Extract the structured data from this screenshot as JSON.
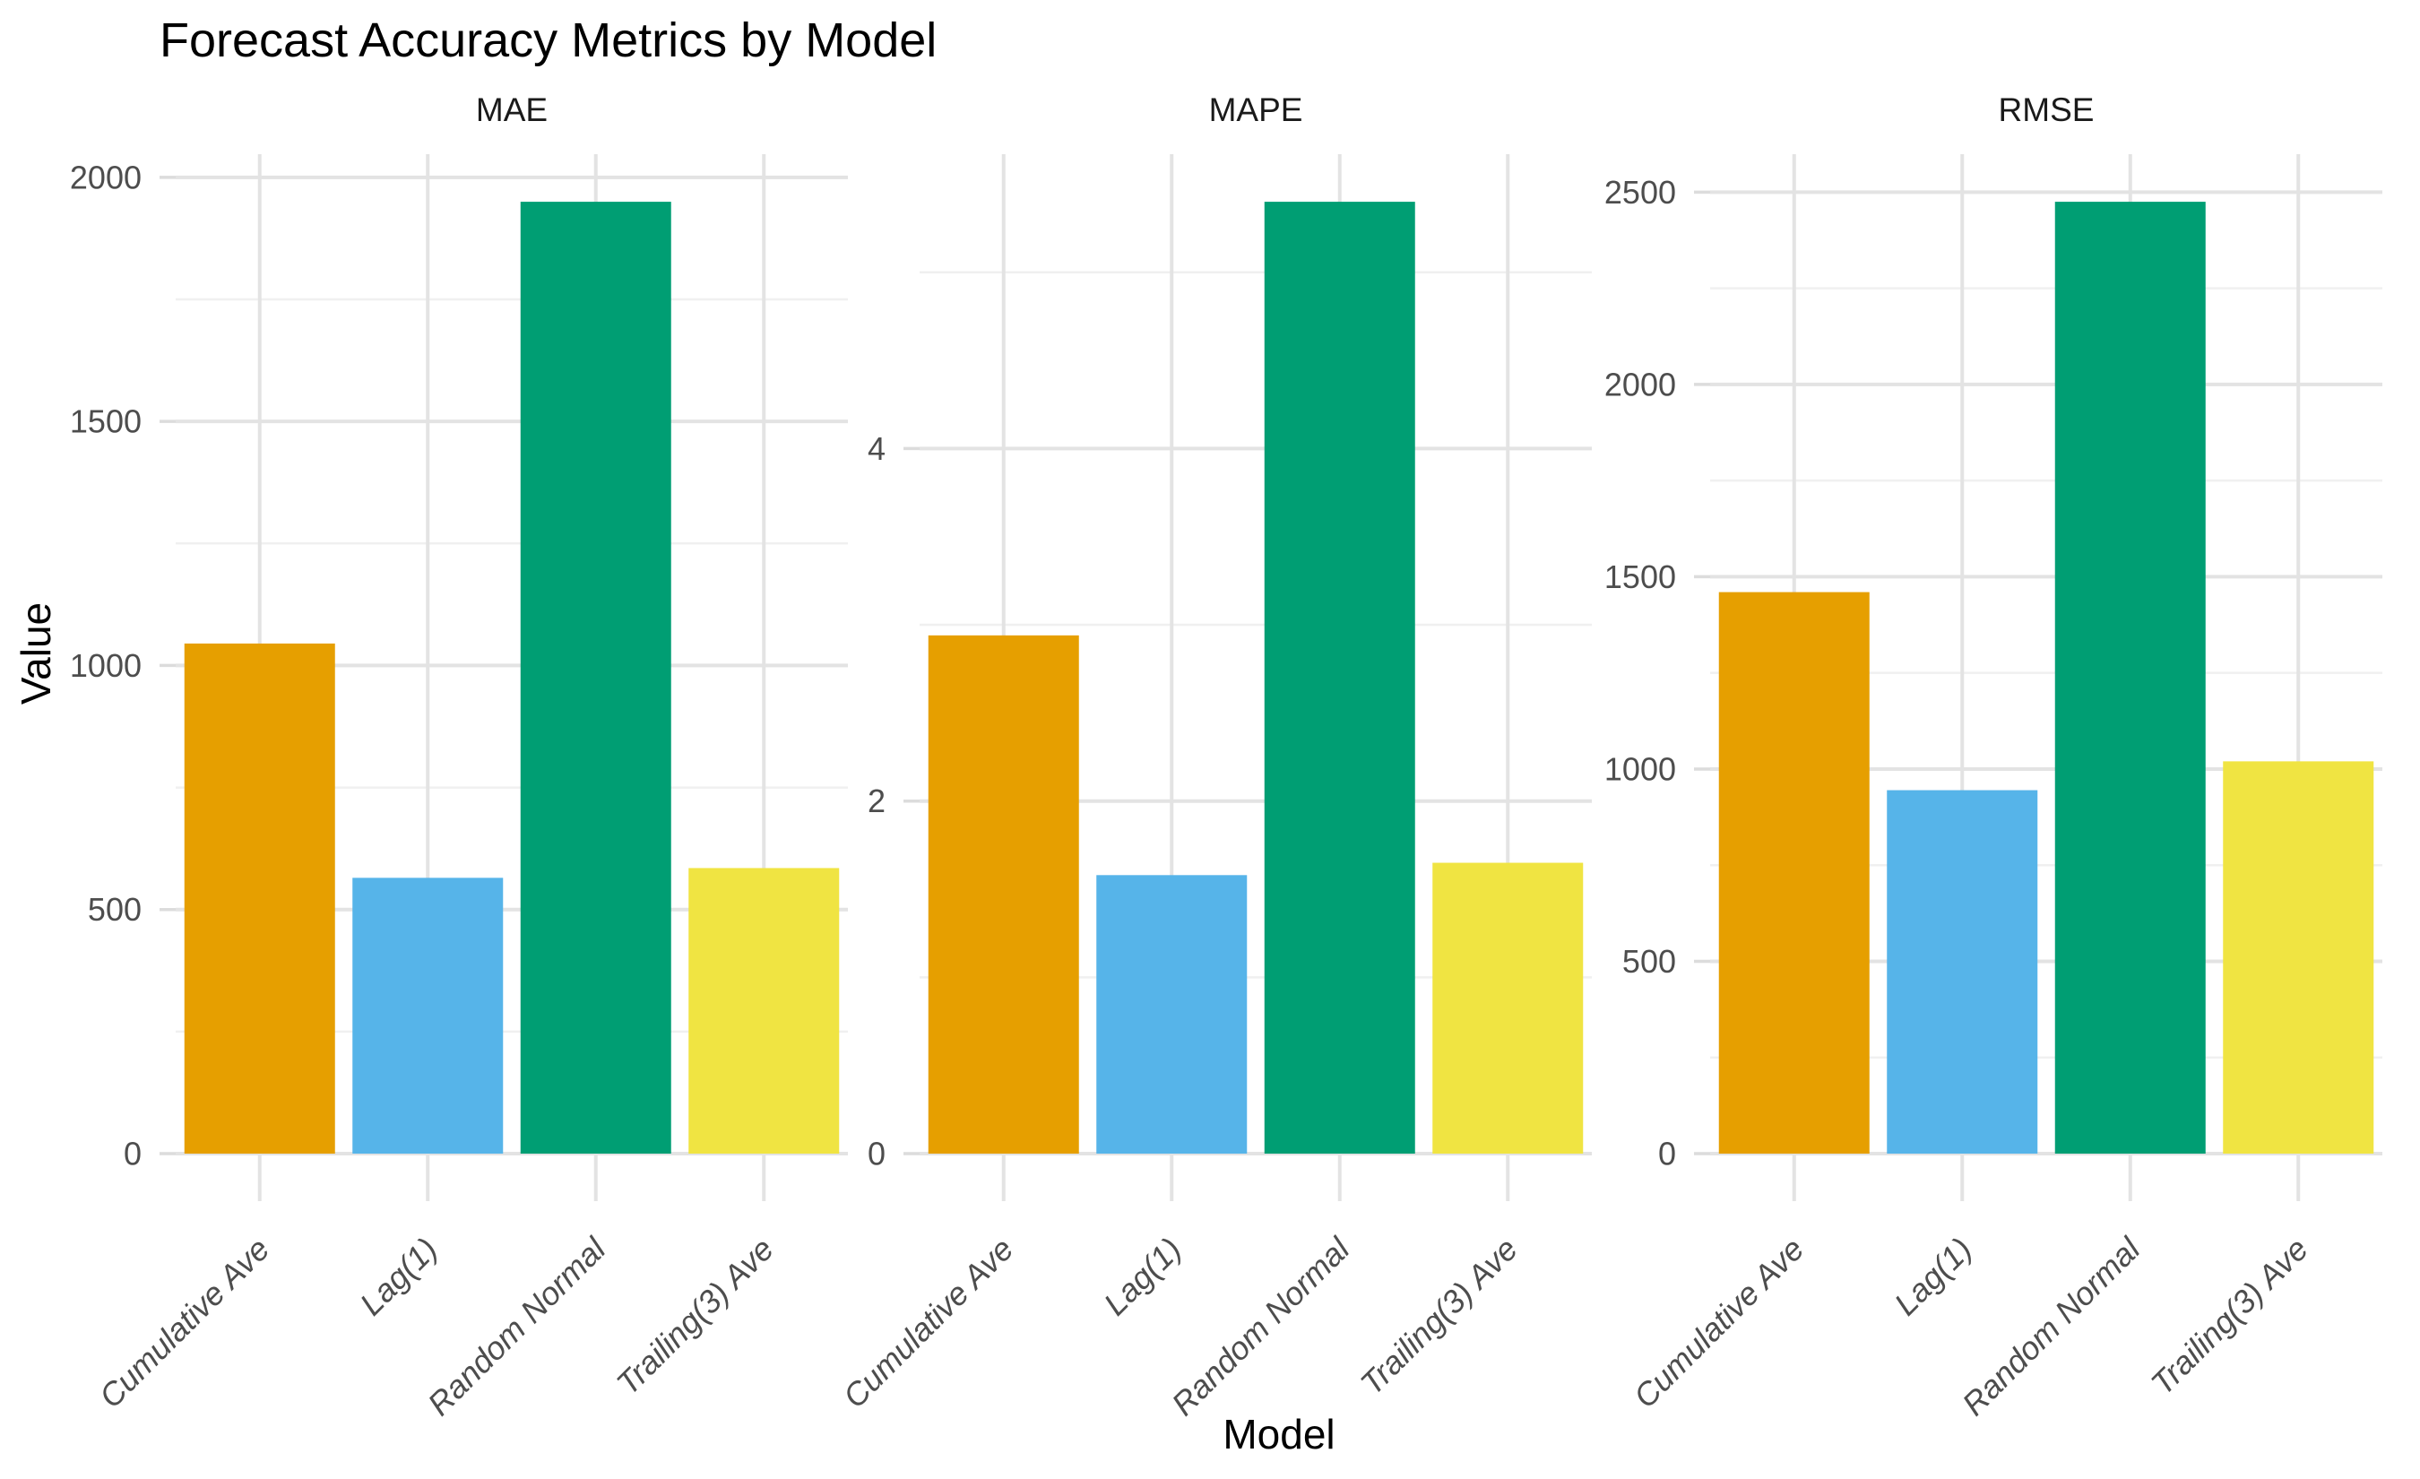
{
  "chart": {
    "title": "Forecast Accuracy Metrics by Model",
    "xlabel": "Model",
    "ylabel": "Value"
  },
  "chart_data": {
    "type": "bar",
    "facet_layout": "3 panels side by side, shared categories, free y scales",
    "categories": [
      "Cumulative Ave",
      "Lag(1)",
      "Random Normal",
      "Trailing(3) Ave"
    ],
    "bar_colors": [
      "#E69F00",
      "#56B4E9",
      "#009E73",
      "#F0E442"
    ],
    "panels": [
      {
        "title": "MAE",
        "values": [
          1045,
          565,
          1950,
          585
        ],
        "yticks": [
          0,
          500,
          1000,
          1500,
          2000
        ],
        "yminor": [
          250,
          750,
          1250,
          1750
        ],
        "ylim": [
          0,
          2047
        ]
      },
      {
        "title": "MAPE",
        "values": [
          2.94,
          1.58,
          5.4,
          1.65
        ],
        "yticks": [
          0,
          2,
          4
        ],
        "yminor": [
          1,
          3,
          5
        ],
        "ylim": [
          0,
          5.67
        ]
      },
      {
        "title": "RMSE",
        "values": [
          1460,
          945,
          2475,
          1020
        ],
        "yticks": [
          0,
          500,
          1000,
          1500,
          2000,
          2500
        ],
        "yminor": [
          250,
          750,
          1250,
          1750,
          2250
        ],
        "ylim": [
          0,
          2599
        ]
      }
    ],
    "grid": "major and minor horizontal gridlines; major vertical gridlines at category centers",
    "legend": "none",
    "x_tick_label_style": "italic, rotated 45 degrees"
  },
  "style": {
    "background": "#FFFFFF",
    "title_color": "#000000",
    "axis_title_color": "#000000",
    "strip_text_color": "#1A1A1A",
    "axis_text_color": "#4D4D4D",
    "grid_major_color": "#E3E3E3",
    "grid_minor_color": "#F0F0F0",
    "tick_mark_color": "#DCDCDC"
  }
}
